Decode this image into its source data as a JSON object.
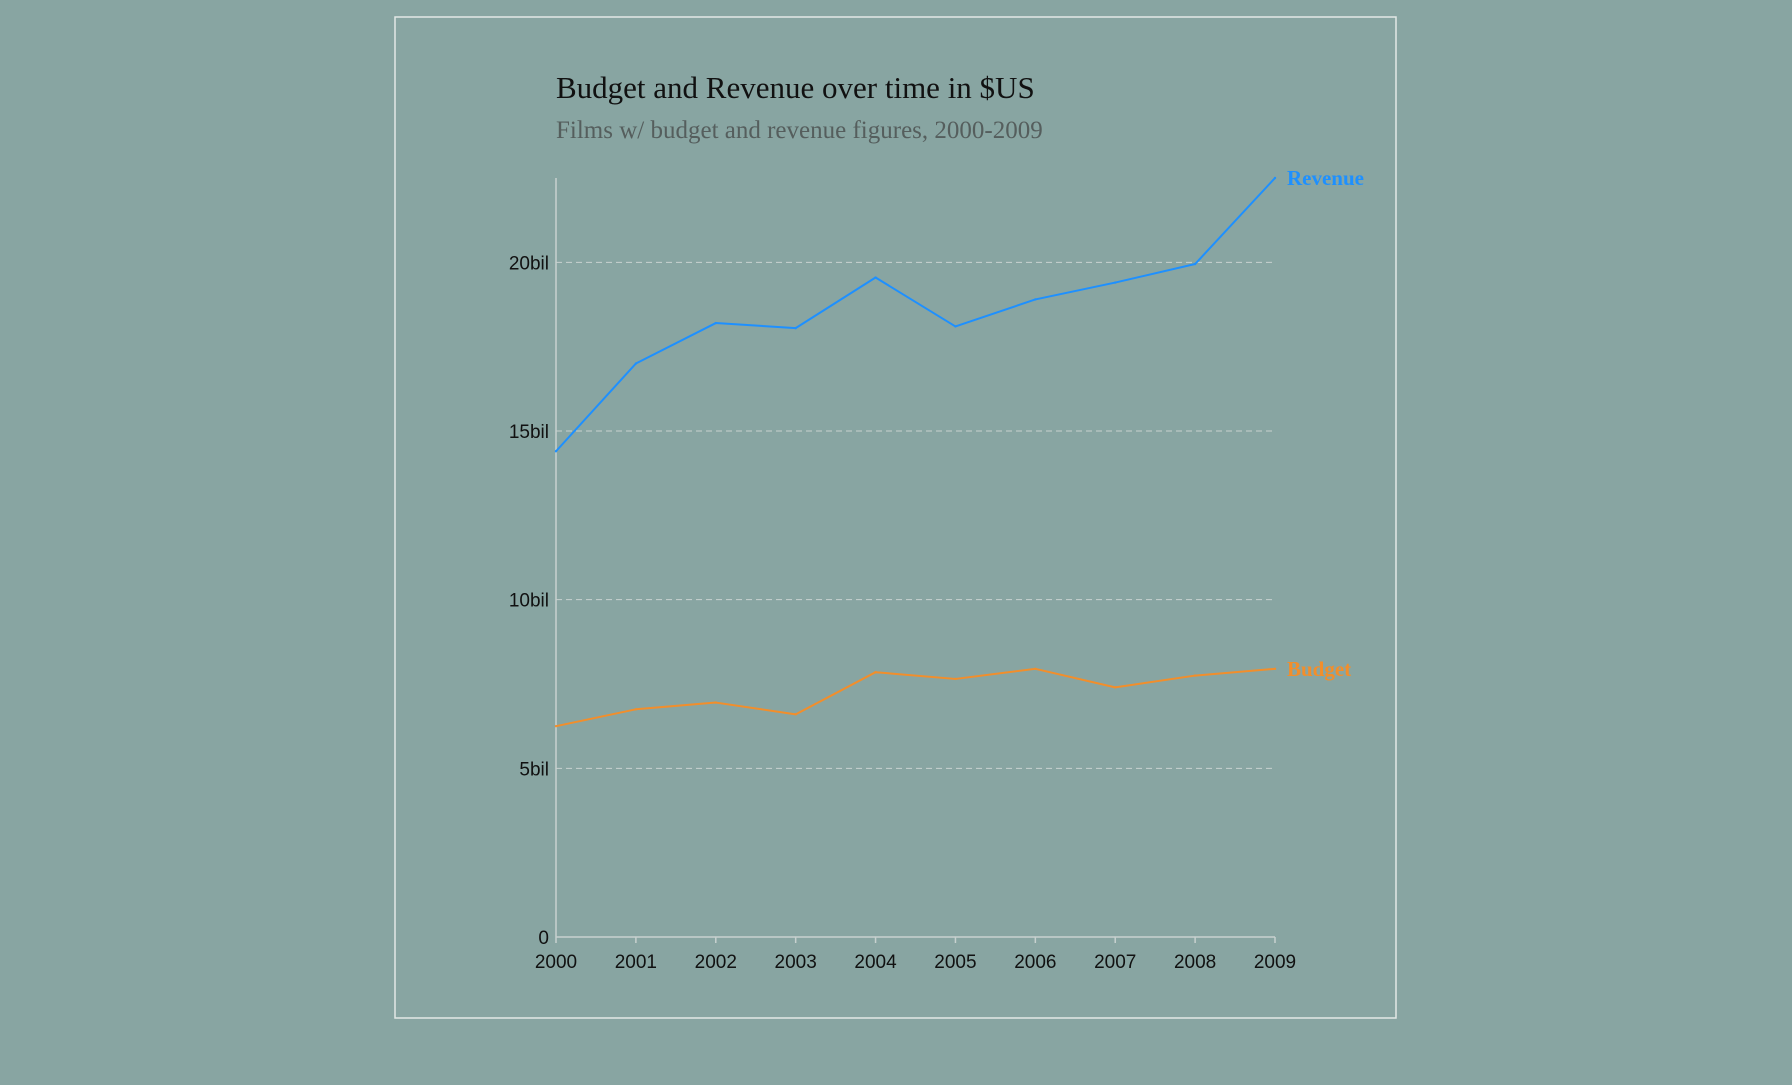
{
  "chart_data": {
    "type": "line",
    "title": "Budget and Revenue over time in $US",
    "subtitle": "Films w/ budget and revenue figures, 2000-2009",
    "x": [
      2000,
      2001,
      2002,
      2003,
      2004,
      2005,
      2006,
      2007,
      2008,
      2009
    ],
    "x_tick_labels": [
      "2000",
      "2001",
      "2002",
      "2003",
      "2004",
      "2005",
      "2006",
      "2007",
      "2008",
      "2009"
    ],
    "y_tick_values": [
      0,
      5,
      10,
      15,
      20
    ],
    "y_tick_labels": [
      "0",
      "5bil",
      "10bil",
      "15bil",
      "20bil"
    ],
    "ylim": [
      0,
      22.5
    ],
    "y_unit": "billion $US",
    "grid": true,
    "legend": "direct labels at line ends",
    "series": [
      {
        "name": "Revenue",
        "color": "#1e90ff",
        "values": [
          14.4,
          17.0,
          18.2,
          18.05,
          19.55,
          18.1,
          18.9,
          19.4,
          19.95,
          22.5
        ]
      },
      {
        "name": "Budget",
        "color": "#f28e2b",
        "values": [
          6.25,
          6.75,
          6.95,
          6.6,
          7.85,
          7.65,
          7.95,
          7.4,
          7.75,
          7.95
        ]
      }
    ]
  }
}
